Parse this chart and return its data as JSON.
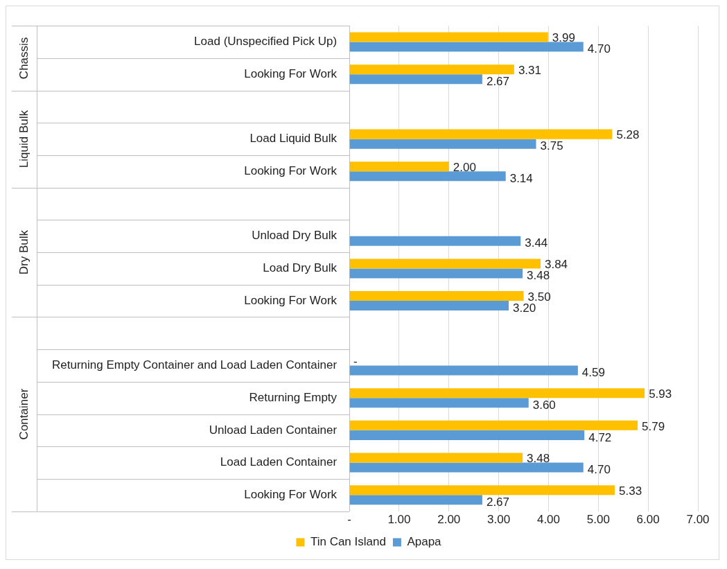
{
  "chart_data": {
    "type": "bar",
    "orientation": "horizontal",
    "categories": [
      "Load (Unspecified Pick Up)",
      "Looking For Work",
      null,
      "Load Liquid Bulk",
      "Looking For Work",
      null,
      "Unload Dry Bulk",
      "Load Dry Bulk",
      "Looking For Work",
      null,
      "Returning Empty Container and Load Laden Container",
      "Returning Empty",
      "Unload Laden Container",
      "Load Laden Container",
      "Looking For Work"
    ],
    "series": [
      {
        "name": "Tin Can Island",
        "color": "#ffc000",
        "values": [
          3.99,
          3.31,
          null,
          5.28,
          2.0,
          null,
          null,
          3.84,
          3.5,
          null,
          0,
          5.93,
          5.79,
          3.48,
          5.33
        ],
        "value_labels": [
          "3.99",
          "3.31",
          null,
          "5.28",
          "2.00",
          null,
          null,
          "3.84",
          "3.50",
          null,
          "-",
          "5.93",
          "5.79",
          "3.48",
          "5.33"
        ]
      },
      {
        "name": "Apapa",
        "color": "#5b9bd5",
        "values": [
          4.7,
          2.67,
          null,
          3.75,
          3.14,
          null,
          3.44,
          3.48,
          3.2,
          null,
          4.59,
          3.6,
          4.72,
          4.7,
          2.67
        ],
        "value_labels": [
          "4.70",
          "2.67",
          null,
          "3.75",
          "3.14",
          null,
          "3.44",
          "3.48",
          "3.20",
          null,
          "4.59",
          "3.60",
          "4.72",
          "4.70",
          "2.67"
        ]
      }
    ],
    "xlim": [
      0,
      7
    ],
    "xticks": [
      {
        "value": 0,
        "label": "-"
      },
      {
        "value": 1,
        "label": "1.00"
      },
      {
        "value": 2,
        "label": "2.00"
      },
      {
        "value": 3,
        "label": "3.00"
      },
      {
        "value": 4,
        "label": "4.00"
      },
      {
        "value": 5,
        "label": "5.00"
      },
      {
        "value": 6,
        "label": "6.00"
      },
      {
        "value": 7,
        "label": "7.00"
      }
    ],
    "annotations": [
      "Chassis",
      "Liquid Bulk",
      "Dry Bulk",
      "Container"
    ],
    "grid": "x",
    "legend": "bottom"
  }
}
